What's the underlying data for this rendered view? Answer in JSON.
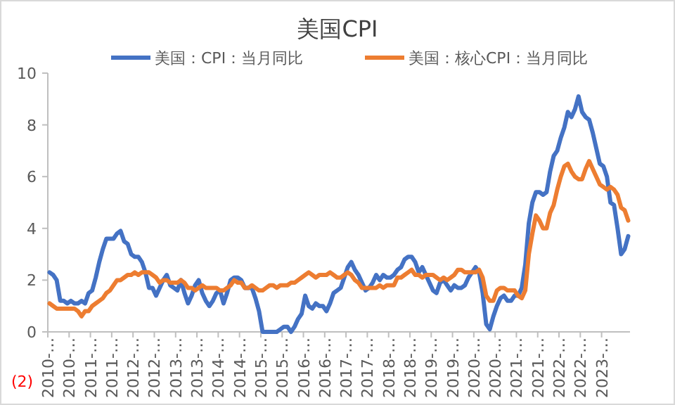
{
  "chart_data": {
    "type": "line",
    "title": "美国CPI",
    "legend": "top",
    "grid": false,
    "marker": "none",
    "line_style": "solid",
    "categories": [
      "2010-…",
      null,
      null,
      null,
      null,
      null,
      "2010-…",
      null,
      null,
      null,
      null,
      null,
      "2011-…",
      null,
      null,
      null,
      null,
      null,
      "2011-…",
      null,
      null,
      null,
      null,
      null,
      "2012-…",
      null,
      null,
      null,
      null,
      null,
      "2012-…",
      null,
      null,
      null,
      null,
      null,
      "2013-…",
      null,
      null,
      null,
      null,
      null,
      "2013-…",
      null,
      null,
      null,
      null,
      null,
      "2014-…",
      null,
      null,
      null,
      null,
      null,
      "2014-…",
      null,
      null,
      null,
      null,
      null,
      "2015-…",
      null,
      null,
      null,
      null,
      null,
      "2015-…",
      null,
      null,
      null,
      null,
      null,
      "2016-…",
      null,
      null,
      null,
      null,
      null,
      "2016-…",
      null,
      null,
      null,
      null,
      null,
      "2017-…",
      null,
      null,
      null,
      null,
      null,
      "2017-…",
      null,
      null,
      null,
      null,
      null,
      "2018-…",
      null,
      null,
      null,
      null,
      null,
      "2018-…",
      null,
      null,
      null,
      null,
      null,
      "2019-…",
      null,
      null,
      null,
      null,
      null,
      "2019-…",
      null,
      null,
      null,
      null,
      null,
      "2020-…",
      null,
      null,
      null,
      null,
      null,
      "2020-…",
      null,
      null,
      null,
      null,
      null,
      "2021-…",
      null,
      null,
      null,
      null,
      null,
      "2021-…",
      null,
      null,
      null,
      null,
      null,
      "2022-…",
      null,
      null,
      null,
      null,
      null,
      "2022-…",
      null,
      null,
      null,
      null,
      null,
      "2023-…",
      null,
      null,
      null,
      null,
      null,
      null,
      null
    ],
    "ylim": [
      0,
      10
    ],
    "yticks": [
      0,
      2,
      4,
      6,
      8,
      10
    ],
    "series": [
      {
        "name": "美国：CPI：当月同比",
        "color": "#4472c4",
        "values": [
          2.3,
          2.2,
          2.0,
          1.2,
          1.2,
          1.1,
          1.2,
          1.1,
          1.1,
          1.2,
          1.1,
          1.5,
          1.6,
          2.1,
          2.7,
          3.2,
          3.6,
          3.6,
          3.6,
          3.8,
          3.9,
          3.5,
          3.4,
          3.0,
          2.9,
          2.9,
          2.7,
          2.3,
          1.7,
          1.7,
          1.4,
          1.7,
          2.0,
          2.2,
          1.8,
          1.7,
          1.6,
          2.0,
          1.5,
          1.1,
          1.4,
          1.8,
          2.0,
          1.5,
          1.2,
          1.0,
          1.2,
          1.5,
          1.6,
          1.1,
          1.5,
          2.0,
          2.1,
          2.1,
          2.0,
          1.7,
          1.7,
          1.7,
          1.3,
          0.8,
          0.0,
          0.0,
          0.0,
          0.0,
          0.0,
          0.1,
          0.2,
          0.2,
          0.0,
          0.2,
          0.5,
          0.7,
          1.4,
          1.0,
          0.9,
          1.1,
          1.0,
          1.0,
          0.8,
          1.1,
          1.5,
          1.6,
          1.7,
          2.1,
          2.5,
          2.7,
          2.4,
          2.2,
          1.9,
          1.6,
          1.7,
          1.9,
          2.2,
          2.0,
          2.2,
          2.1,
          2.1,
          2.2,
          2.4,
          2.5,
          2.8,
          2.9,
          2.9,
          2.7,
          2.3,
          2.5,
          2.2,
          1.9,
          1.6,
          1.5,
          1.9,
          2.0,
          1.8,
          1.6,
          1.8,
          1.7,
          1.7,
          1.8,
          2.1,
          2.3,
          2.5,
          2.3,
          1.5,
          0.3,
          0.1,
          0.6,
          1.0,
          1.3,
          1.4,
          1.2,
          1.2,
          1.4,
          1.4,
          1.7,
          2.6,
          4.2,
          5.0,
          5.4,
          5.4,
          5.3,
          5.4,
          6.2,
          6.8,
          7.0,
          7.5,
          7.9,
          8.5,
          8.3,
          8.6,
          9.1,
          8.5,
          8.3,
          8.2,
          7.7,
          7.1,
          6.5,
          6.4,
          6.0,
          5.0,
          4.9,
          4.0,
          3.0,
          3.2,
          3.7
        ]
      },
      {
        "name": "美国：核心CPI：当月同比",
        "color": "#ed7d31",
        "values": [
          1.1,
          1.0,
          0.9,
          0.9,
          0.9,
          0.9,
          0.9,
          0.9,
          0.8,
          0.6,
          0.8,
          0.8,
          1.0,
          1.1,
          1.2,
          1.3,
          1.5,
          1.6,
          1.8,
          2.0,
          2.0,
          2.1,
          2.2,
          2.2,
          2.3,
          2.2,
          2.3,
          2.3,
          2.3,
          2.2,
          2.1,
          1.9,
          2.0,
          2.0,
          1.9,
          1.9,
          1.9,
          2.0,
          1.9,
          1.7,
          1.7,
          1.6,
          1.7,
          1.8,
          1.7,
          1.7,
          1.7,
          1.7,
          1.6,
          1.6,
          1.7,
          1.8,
          2.0,
          1.9,
          1.9,
          1.7,
          1.7,
          1.8,
          1.7,
          1.6,
          1.6,
          1.7,
          1.8,
          1.8,
          1.7,
          1.8,
          1.8,
          1.8,
          1.9,
          1.9,
          2.0,
          2.1,
          2.2,
          2.3,
          2.2,
          2.1,
          2.2,
          2.2,
          2.2,
          2.3,
          2.2,
          2.1,
          2.1,
          2.2,
          2.3,
          2.2,
          2.0,
          1.9,
          1.7,
          1.7,
          1.7,
          1.7,
          1.7,
          1.8,
          1.7,
          1.8,
          1.8,
          1.8,
          2.1,
          2.1,
          2.2,
          2.3,
          2.4,
          2.2,
          2.2,
          2.1,
          2.2,
          2.2,
          2.2,
          2.1,
          2.0,
          2.1,
          2.0,
          2.1,
          2.2,
          2.4,
          2.4,
          2.3,
          2.3,
          2.3,
          2.3,
          2.4,
          2.1,
          1.4,
          1.2,
          1.2,
          1.6,
          1.7,
          1.7,
          1.6,
          1.6,
          1.6,
          1.4,
          1.3,
          1.6,
          3.0,
          3.8,
          4.5,
          4.3,
          4.0,
          4.0,
          4.6,
          4.9,
          5.5,
          6.0,
          6.4,
          6.5,
          6.2,
          6.0,
          5.9,
          5.9,
          6.3,
          6.6,
          6.3,
          6.0,
          5.7,
          5.6,
          5.5,
          5.6,
          5.5,
          5.3,
          4.8,
          4.7,
          4.3
        ]
      }
    ],
    "annotations": [
      "(2)"
    ]
  }
}
